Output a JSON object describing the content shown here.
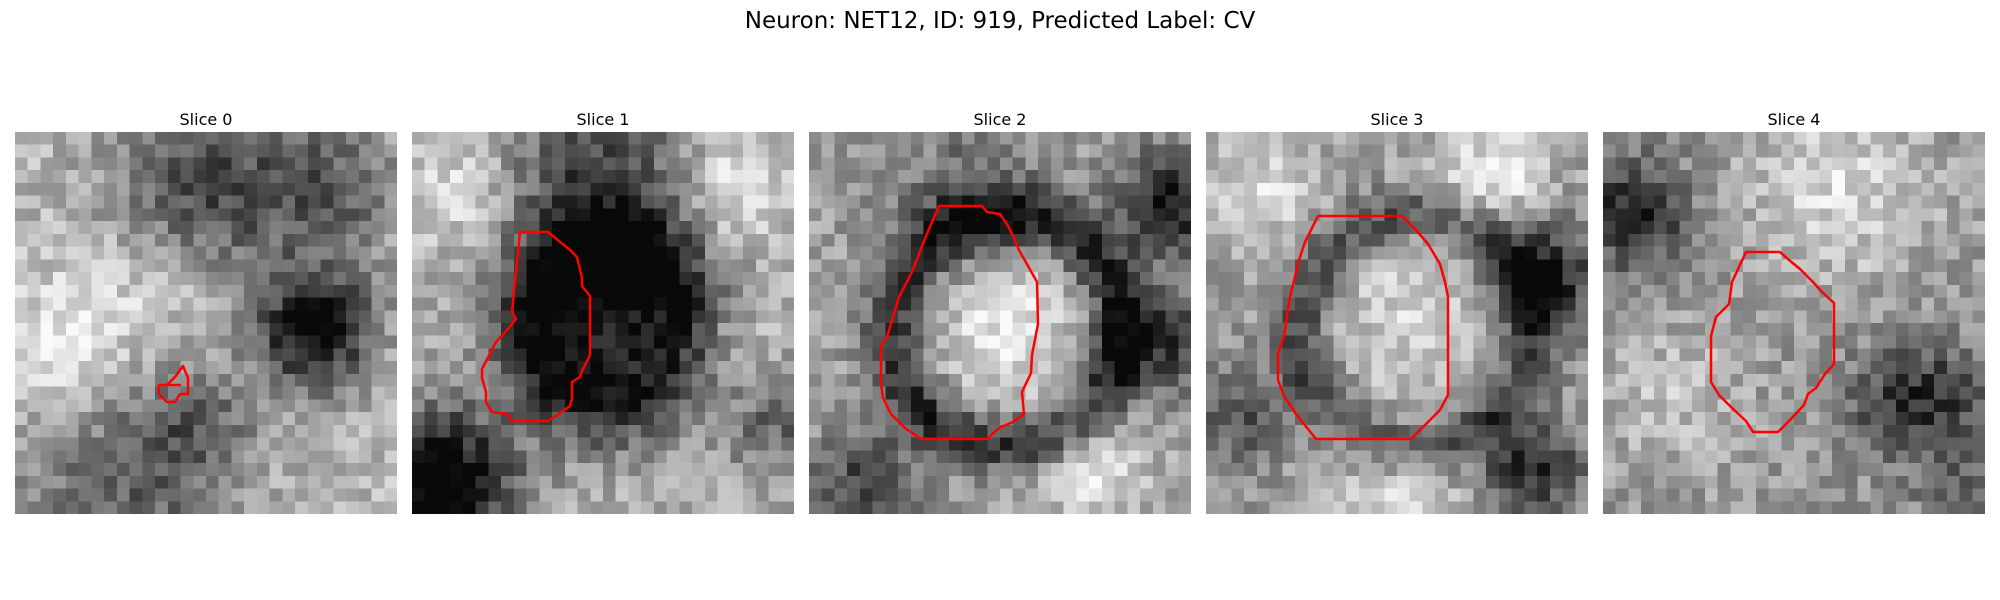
{
  "figure": {
    "title": "Neuron: NET12, ID: 919, Predicted Label: CV",
    "contour_color": "#ff0000"
  },
  "slices": [
    {
      "title": "Slice 0"
    },
    {
      "title": "Slice 1"
    },
    {
      "title": "Slice 2"
    },
    {
      "title": "Slice 3"
    },
    {
      "title": "Slice 4"
    }
  ]
}
